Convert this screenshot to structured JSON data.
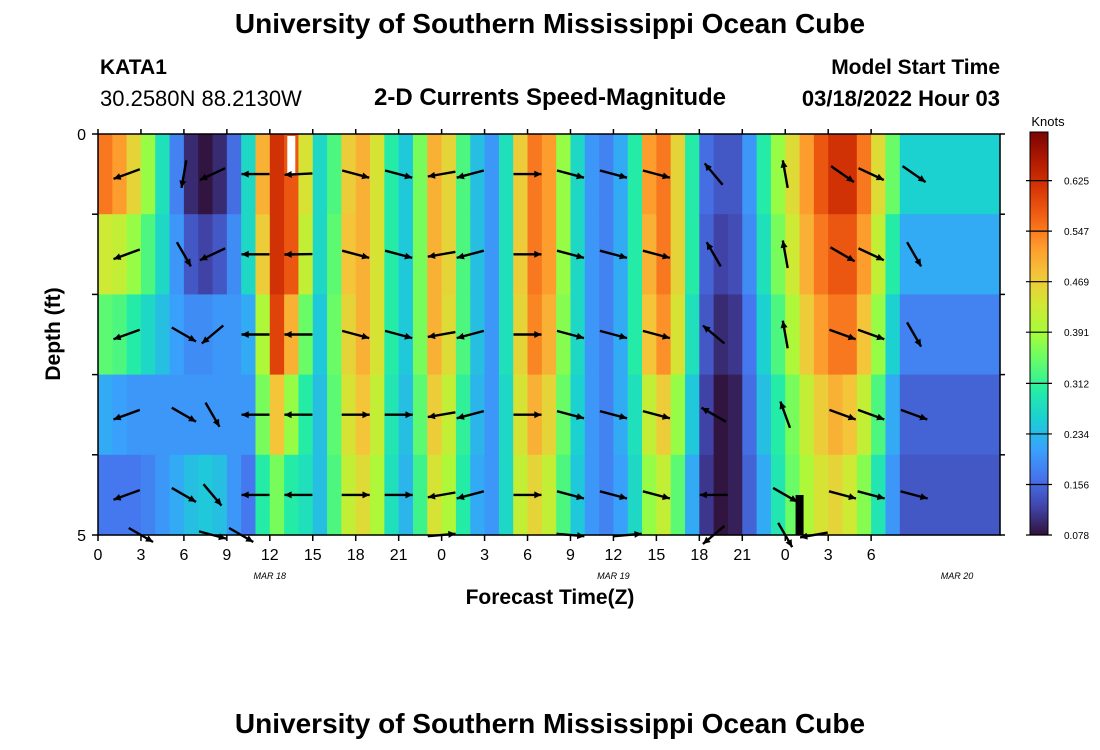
{
  "page": {
    "title_top": "University of Southern Mississippi Ocean Cube",
    "title_bottom": "University of Southern Mississippi Ocean Cube",
    "station_name": "KATA1",
    "station_coords": "30.2580N  88.2130W",
    "subtitle": "2-D Currents Speed-Magnitude",
    "model_label": "Model Start Time",
    "model_time": "03/18/2022 Hour 03"
  },
  "chart_data": {
    "type": "heatmap",
    "title": "2-D Currents Speed-Magnitude",
    "xlabel": "Forecast Time(Z)",
    "ylabel": "Depth (ft)",
    "x_ticks": [
      "0",
      "3",
      "6",
      "9",
      "12",
      "15",
      "18",
      "21",
      "0",
      "3",
      "6",
      "9",
      "12",
      "15",
      "18",
      "21",
      "0",
      "3",
      "6"
    ],
    "date_labels": [
      {
        "label": "MAR 18",
        "at_hour": 12
      },
      {
        "label": "MAR 19",
        "at_hour": 36
      },
      {
        "label": "MAR 20",
        "at_hour": 60
      }
    ],
    "x_range_hours": [
      0,
      63
    ],
    "y_ticks": [
      "0",
      "5"
    ],
    "ylim": [
      0,
      5
    ],
    "depth_rows": 5,
    "colorbar": {
      "label": "Knots",
      "ticks": [
        0.078,
        0.156,
        0.234,
        0.312,
        0.391,
        0.469,
        0.547,
        0.625
      ],
      "range": [
        0.078,
        0.7
      ]
    },
    "colorscale": [
      "#30123b",
      "#4145ab",
      "#4675ed",
      "#39a2fc",
      "#1bcfd4",
      "#24eca6",
      "#61fc6c",
      "#a4fc3b",
      "#d1e834",
      "#f3c63a",
      "#fe9b2d",
      "#f36315",
      "#d93806",
      "#b11901",
      "#7a0402"
    ],
    "speed_by_hour": [
      {
        "h": 0,
        "v": [
          0.55,
          0.43,
          0.34,
          0.22,
          0.17
        ]
      },
      {
        "h": 1,
        "v": [
          0.52,
          0.42,
          0.33,
          0.21,
          0.17
        ]
      },
      {
        "h": 2,
        "v": [
          0.46,
          0.38,
          0.3,
          0.2,
          0.17
        ]
      },
      {
        "h": 3,
        "v": [
          0.38,
          0.33,
          0.27,
          0.2,
          0.18
        ]
      },
      {
        "h": 4,
        "v": [
          0.28,
          0.27,
          0.24,
          0.2,
          0.2
        ]
      },
      {
        "h": 5,
        "v": [
          0.18,
          0.2,
          0.21,
          0.2,
          0.22
        ]
      },
      {
        "h": 6,
        "v": [
          0.1,
          0.14,
          0.19,
          0.2,
          0.24
        ]
      },
      {
        "h": 7,
        "v": [
          0.08,
          0.12,
          0.19,
          0.2,
          0.25
        ]
      },
      {
        "h": 8,
        "v": [
          0.1,
          0.14,
          0.2,
          0.2,
          0.24
        ]
      },
      {
        "h": 9,
        "v": [
          0.16,
          0.19,
          0.2,
          0.2,
          0.2
        ]
      },
      {
        "h": 10,
        "v": [
          0.27,
          0.27,
          0.22,
          0.2,
          0.17
        ]
      },
      {
        "h": 11,
        "v": [
          0.5,
          0.47,
          0.4,
          0.36,
          0.3
        ]
      },
      {
        "h": 12,
        "v": [
          0.62,
          0.62,
          0.6,
          0.48,
          0.36
        ]
      },
      {
        "h": 13,
        "v": [
          0.58,
          0.58,
          0.5,
          0.38,
          0.3
        ]
      },
      {
        "h": 14,
        "v": [
          0.44,
          0.42,
          0.35,
          0.3,
          0.28
        ]
      },
      {
        "h": 15,
        "v": [
          0.27,
          0.27,
          0.25,
          0.24,
          0.24
        ]
      },
      {
        "h": 16,
        "v": [
          0.33,
          0.34,
          0.35,
          0.34,
          0.33
        ]
      },
      {
        "h": 17,
        "v": [
          0.47,
          0.48,
          0.46,
          0.44,
          0.42
        ]
      },
      {
        "h": 18,
        "v": [
          0.5,
          0.5,
          0.5,
          0.48,
          0.45
        ]
      },
      {
        "h": 19,
        "v": [
          0.44,
          0.44,
          0.44,
          0.42,
          0.4
        ]
      },
      {
        "h": 20,
        "v": [
          0.3,
          0.3,
          0.3,
          0.29,
          0.28
        ]
      },
      {
        "h": 21,
        "v": [
          0.25,
          0.25,
          0.25,
          0.24,
          0.23
        ]
      },
      {
        "h": 22,
        "v": [
          0.36,
          0.36,
          0.36,
          0.34,
          0.32
        ]
      },
      {
        "h": 23,
        "v": [
          0.5,
          0.5,
          0.5,
          0.47,
          0.44
        ]
      },
      {
        "h": 24,
        "v": [
          0.46,
          0.46,
          0.45,
          0.42,
          0.4
        ]
      },
      {
        "h": 25,
        "v": [
          0.33,
          0.33,
          0.33,
          0.31,
          0.3
        ]
      },
      {
        "h": 26,
        "v": [
          0.24,
          0.24,
          0.24,
          0.23,
          0.22
        ]
      },
      {
        "h": 27,
        "v": [
          0.2,
          0.2,
          0.2,
          0.2,
          0.2
        ]
      },
      {
        "h": 28,
        "v": [
          0.28,
          0.28,
          0.28,
          0.27,
          0.27
        ]
      },
      {
        "h": 29,
        "v": [
          0.47,
          0.47,
          0.46,
          0.44,
          0.42
        ]
      },
      {
        "h": 30,
        "v": [
          0.55,
          0.55,
          0.54,
          0.5,
          0.46
        ]
      },
      {
        "h": 31,
        "v": [
          0.52,
          0.52,
          0.5,
          0.46,
          0.42
        ]
      },
      {
        "h": 32,
        "v": [
          0.38,
          0.38,
          0.37,
          0.35,
          0.33
        ]
      },
      {
        "h": 33,
        "v": [
          0.27,
          0.27,
          0.27,
          0.26,
          0.25
        ]
      },
      {
        "h": 34,
        "v": [
          0.2,
          0.2,
          0.2,
          0.2,
          0.2
        ]
      },
      {
        "h": 35,
        "v": [
          0.18,
          0.18,
          0.18,
          0.18,
          0.18
        ]
      },
      {
        "h": 36,
        "v": [
          0.22,
          0.22,
          0.22,
          0.22,
          0.21
        ]
      },
      {
        "h": 37,
        "v": [
          0.3,
          0.3,
          0.3,
          0.28,
          0.27
        ]
      },
      {
        "h": 38,
        "v": [
          0.52,
          0.5,
          0.48,
          0.42,
          0.38
        ]
      },
      {
        "h": 39,
        "v": [
          0.55,
          0.55,
          0.53,
          0.47,
          0.42
        ]
      },
      {
        "h": 40,
        "v": [
          0.46,
          0.46,
          0.44,
          0.38,
          0.34
        ]
      },
      {
        "h": 41,
        "v": [
          0.3,
          0.3,
          0.28,
          0.25,
          0.22
        ]
      },
      {
        "h": 42,
        "v": [
          0.16,
          0.15,
          0.14,
          0.12,
          0.11
        ]
      },
      {
        "h": 43,
        "v": [
          0.14,
          0.12,
          0.1,
          0.08,
          0.08
        ]
      },
      {
        "h": 44,
        "v": [
          0.14,
          0.13,
          0.11,
          0.09,
          0.09
        ]
      },
      {
        "h": 45,
        "v": [
          0.2,
          0.19,
          0.17,
          0.16,
          0.15
        ]
      },
      {
        "h": 46,
        "v": [
          0.3,
          0.28,
          0.26,
          0.24,
          0.22
        ]
      },
      {
        "h": 47,
        "v": [
          0.38,
          0.36,
          0.33,
          0.3,
          0.29
        ]
      },
      {
        "h": 48,
        "v": [
          0.45,
          0.43,
          0.4,
          0.36,
          0.35
        ]
      },
      {
        "h": 49,
        "v": [
          0.52,
          0.5,
          0.47,
          0.42,
          0.4
        ]
      },
      {
        "h": 50,
        "v": [
          0.58,
          0.55,
          0.52,
          0.47,
          0.44
        ]
      },
      {
        "h": 51,
        "v": [
          0.62,
          0.58,
          0.55,
          0.5,
          0.46
        ]
      },
      {
        "h": 52,
        "v": [
          0.62,
          0.58,
          0.55,
          0.48,
          0.43
        ]
      },
      {
        "h": 53,
        "v": [
          0.55,
          0.52,
          0.48,
          0.42,
          0.37
        ]
      },
      {
        "h": 54,
        "v": [
          0.45,
          0.42,
          0.38,
          0.33,
          0.29
        ]
      },
      {
        "h": 55,
        "v": [
          0.35,
          0.3,
          0.26,
          0.22,
          0.2
        ]
      },
      {
        "h": 56,
        "v": [
          0.26,
          0.22,
          0.18,
          0.15,
          0.14
        ]
      }
    ],
    "missing_cells": [
      {
        "h": 13.5,
        "depth_row": 0,
        "color": "#ffffff"
      },
      {
        "h": 49.0,
        "depth_row": 4,
        "color": "#000000"
      }
    ],
    "vectors": [
      {
        "h": 2,
        "d": 0.5,
        "ang": 200
      },
      {
        "h": 6,
        "d": 0.5,
        "ang": 260
      },
      {
        "h": 8,
        "d": 0.5,
        "ang": 205
      },
      {
        "h": 11,
        "d": 0.5,
        "ang": 180
      },
      {
        "h": 14,
        "d": 0.5,
        "ang": 183
      },
      {
        "h": 18,
        "d": 0.5,
        "ang": 345
      },
      {
        "h": 21,
        "d": 0.5,
        "ang": 345
      },
      {
        "h": 24,
        "d": 0.5,
        "ang": 190
      },
      {
        "h": 26,
        "d": 0.5,
        "ang": 195
      },
      {
        "h": 30,
        "d": 0.5,
        "ang": 0
      },
      {
        "h": 33,
        "d": 0.5,
        "ang": 345
      },
      {
        "h": 36,
        "d": 0.5,
        "ang": 345
      },
      {
        "h": 39,
        "d": 0.5,
        "ang": 345
      },
      {
        "h": 43,
        "d": 0.5,
        "ang": 130
      },
      {
        "h": 48,
        "d": 0.5,
        "ang": 100
      },
      {
        "h": 52,
        "d": 0.5,
        "ang": 325
      },
      {
        "h": 54,
        "d": 0.5,
        "ang": 335
      },
      {
        "h": 57,
        "d": 0.5,
        "ang": 325
      },
      {
        "h": 2,
        "d": 1.5,
        "ang": 200
      },
      {
        "h": 6,
        "d": 1.5,
        "ang": 300
      },
      {
        "h": 8,
        "d": 1.5,
        "ang": 205
      },
      {
        "h": 11,
        "d": 1.5,
        "ang": 180
      },
      {
        "h": 14,
        "d": 1.5,
        "ang": 181
      },
      {
        "h": 18,
        "d": 1.5,
        "ang": 345
      },
      {
        "h": 21,
        "d": 1.5,
        "ang": 345
      },
      {
        "h": 24,
        "d": 1.5,
        "ang": 190
      },
      {
        "h": 26,
        "d": 1.5,
        "ang": 195
      },
      {
        "h": 30,
        "d": 1.5,
        "ang": 0
      },
      {
        "h": 33,
        "d": 1.5,
        "ang": 345
      },
      {
        "h": 36,
        "d": 1.5,
        "ang": 345
      },
      {
        "h": 39,
        "d": 1.5,
        "ang": 345
      },
      {
        "h": 43,
        "d": 1.5,
        "ang": 120
      },
      {
        "h": 48,
        "d": 1.5,
        "ang": 100
      },
      {
        "h": 52,
        "d": 1.5,
        "ang": 330
      },
      {
        "h": 54,
        "d": 1.5,
        "ang": 335
      },
      {
        "h": 57,
        "d": 1.5,
        "ang": 300
      },
      {
        "h": 2,
        "d": 2.5,
        "ang": 200
      },
      {
        "h": 6,
        "d": 2.5,
        "ang": 330
      },
      {
        "h": 8,
        "d": 2.5,
        "ang": 220
      },
      {
        "h": 11,
        "d": 2.5,
        "ang": 180
      },
      {
        "h": 14,
        "d": 2.5,
        "ang": 180
      },
      {
        "h": 18,
        "d": 2.5,
        "ang": 345
      },
      {
        "h": 21,
        "d": 2.5,
        "ang": 345
      },
      {
        "h": 24,
        "d": 2.5,
        "ang": 190
      },
      {
        "h": 26,
        "d": 2.5,
        "ang": 195
      },
      {
        "h": 30,
        "d": 2.5,
        "ang": 0
      },
      {
        "h": 33,
        "d": 2.5,
        "ang": 345
      },
      {
        "h": 36,
        "d": 2.5,
        "ang": 345
      },
      {
        "h": 39,
        "d": 2.5,
        "ang": 345
      },
      {
        "h": 43,
        "d": 2.5,
        "ang": 140
      },
      {
        "h": 48,
        "d": 2.5,
        "ang": 100
      },
      {
        "h": 52,
        "d": 2.5,
        "ang": 340
      },
      {
        "h": 54,
        "d": 2.5,
        "ang": 340
      },
      {
        "h": 57,
        "d": 2.5,
        "ang": 300
      },
      {
        "h": 2,
        "d": 3.5,
        "ang": 200
      },
      {
        "h": 6,
        "d": 3.5,
        "ang": 330
      },
      {
        "h": 8,
        "d": 3.5,
        "ang": 300
      },
      {
        "h": 11,
        "d": 3.5,
        "ang": 180
      },
      {
        "h": 14,
        "d": 3.5,
        "ang": 180
      },
      {
        "h": 18,
        "d": 3.5,
        "ang": 0
      },
      {
        "h": 21,
        "d": 3.5,
        "ang": 0
      },
      {
        "h": 24,
        "d": 3.5,
        "ang": 190
      },
      {
        "h": 26,
        "d": 3.5,
        "ang": 195
      },
      {
        "h": 30,
        "d": 3.5,
        "ang": 0
      },
      {
        "h": 33,
        "d": 3.5,
        "ang": 345
      },
      {
        "h": 36,
        "d": 3.5,
        "ang": 345
      },
      {
        "h": 39,
        "d": 3.5,
        "ang": 345
      },
      {
        "h": 43,
        "d": 3.5,
        "ang": 150
      },
      {
        "h": 48,
        "d": 3.5,
        "ang": 110
      },
      {
        "h": 52,
        "d": 3.5,
        "ang": 340
      },
      {
        "h": 54,
        "d": 3.5,
        "ang": 340
      },
      {
        "h": 57,
        "d": 3.5,
        "ang": 340
      },
      {
        "h": 2,
        "d": 4.5,
        "ang": 200
      },
      {
        "h": 6,
        "d": 4.5,
        "ang": 330
      },
      {
        "h": 8,
        "d": 4.5,
        "ang": 310
      },
      {
        "h": 11,
        "d": 4.5,
        "ang": 180
      },
      {
        "h": 14,
        "d": 4.5,
        "ang": 180
      },
      {
        "h": 18,
        "d": 4.5,
        "ang": 0
      },
      {
        "h": 21,
        "d": 4.5,
        "ang": 0
      },
      {
        "h": 24,
        "d": 4.5,
        "ang": 190
      },
      {
        "h": 26,
        "d": 4.5,
        "ang": 195
      },
      {
        "h": 30,
        "d": 4.5,
        "ang": 0
      },
      {
        "h": 33,
        "d": 4.5,
        "ang": 345
      },
      {
        "h": 36,
        "d": 4.5,
        "ang": 345
      },
      {
        "h": 39,
        "d": 4.5,
        "ang": 345
      },
      {
        "h": 43,
        "d": 4.5,
        "ang": 180
      },
      {
        "h": 48,
        "d": 4.5,
        "ang": 330
      },
      {
        "h": 52,
        "d": 4.5,
        "ang": 345
      },
      {
        "h": 54,
        "d": 4.5,
        "ang": 345
      },
      {
        "h": 57,
        "d": 4.5,
        "ang": 345
      },
      {
        "h": 3,
        "d": 5.0,
        "ang": 330
      },
      {
        "h": 8,
        "d": 5.0,
        "ang": 345
      },
      {
        "h": 10,
        "d": 5.0,
        "ang": 330
      },
      {
        "h": 24,
        "d": 5.0,
        "ang": 5
      },
      {
        "h": 33,
        "d": 5.0,
        "ang": 355
      },
      {
        "h": 37,
        "d": 5.0,
        "ang": 5
      },
      {
        "h": 43,
        "d": 5.0,
        "ang": 220
      },
      {
        "h": 48,
        "d": 5.0,
        "ang": 300
      },
      {
        "h": 50,
        "d": 5.0,
        "ang": 190
      }
    ]
  }
}
